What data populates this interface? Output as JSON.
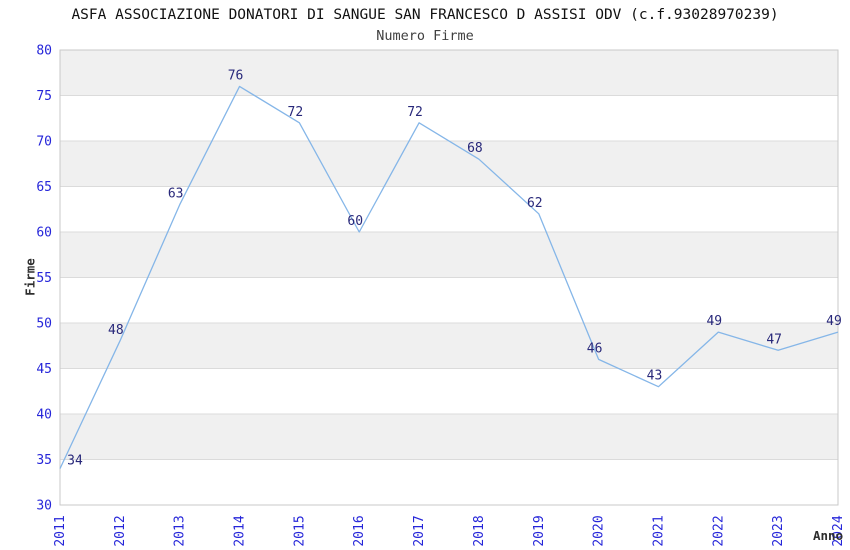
{
  "header": {
    "title": "ASFA ASSOCIAZIONE DONATORI DI SANGUE SAN FRANCESCO D ASSISI ODV (c.f.93028970239)",
    "subtitle": "Numero Firme"
  },
  "chart_data": {
    "type": "line",
    "title": "ASFA ASSOCIAZIONE DONATORI DI SANGUE SAN FRANCESCO D ASSISI ODV (c.f.93028970239)",
    "subtitle": "Numero Firme",
    "xlabel": "Anno",
    "ylabel": "Firme",
    "categories": [
      "2011",
      "2012",
      "2013",
      "2014",
      "2015",
      "2016",
      "2017",
      "2018",
      "2019",
      "2020",
      "2021",
      "2022",
      "2023",
      "2024"
    ],
    "values": [
      34,
      48,
      63,
      76,
      72,
      60,
      72,
      68,
      62,
      46,
      43,
      49,
      47,
      49
    ],
    "ylim": [
      30,
      80
    ],
    "ytick_step": 5,
    "yticks": [
      30,
      35,
      40,
      45,
      50,
      55,
      60,
      65,
      70,
      75,
      80
    ],
    "grid": "horizontal-gridlines-with-alternating-bands",
    "legend_position": "none",
    "point_labels_shown": true,
    "x_tick_rotation_deg": -90,
    "colors": {
      "line": "#85b6e8",
      "tick_label": "#2626d9",
      "data_label": "#28287a",
      "band_fill": "#f0f0f0",
      "gridline": "#dbdbdb",
      "plot_border": "#c9c9c9",
      "title": "#111111",
      "subtitle": "#3f3f3f",
      "axis_title": "#2e2e2e",
      "background": "#ffffff"
    }
  }
}
